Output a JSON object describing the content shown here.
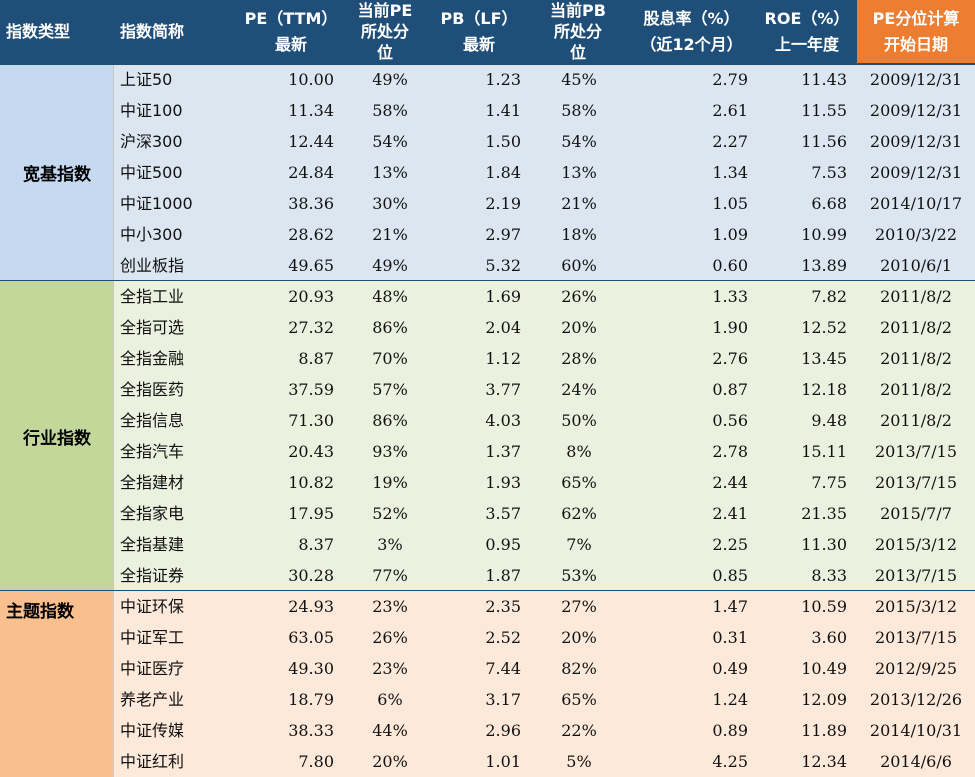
{
  "header": [
    {
      "l1": "指数类型",
      "l2": ""
    },
    {
      "l1": "指数简称",
      "l2": ""
    },
    {
      "l1": "PE（TTM）",
      "l2": "最新"
    },
    {
      "l1": "当前PE",
      "l2": "所处分",
      "l3": "位"
    },
    {
      "l1": "PB（LF）",
      "l2": "最新"
    },
    {
      "l1": "当前PB",
      "l2": "所处分",
      "l3": "位"
    },
    {
      "l1": "股息率（%）",
      "l2": "（近12个月）"
    },
    {
      "l1": "ROE（%）",
      "l2": "上一年度"
    },
    {
      "l1": "PE分位计算",
      "l2": "开始日期"
    }
  ],
  "colors": {
    "header_bg": "#1f4e78",
    "header_accent": "#ed7d31",
    "group1_label_bg": "#c5d9f1",
    "group1_row_bg": "#dce6f1",
    "group2_label_bg": "#c4d79b",
    "group2_row_bg": "#ebf1de",
    "group3_label_bg": "#fabf8f",
    "group3_row_bg": "#fde9d9"
  },
  "groups": [
    {
      "label": "宽基指数",
      "rows": [
        [
          "上证50",
          "10.00",
          "49%",
          "1.23",
          "45%",
          "2.79",
          "11.43",
          "2009/12/31"
        ],
        [
          "中证100",
          "11.34",
          "58%",
          "1.41",
          "58%",
          "2.61",
          "11.55",
          "2009/12/31"
        ],
        [
          "沪深300",
          "12.44",
          "54%",
          "1.50",
          "54%",
          "2.27",
          "11.56",
          "2009/12/31"
        ],
        [
          "中证500",
          "24.84",
          "13%",
          "1.84",
          "13%",
          "1.34",
          "7.53",
          "2009/12/31"
        ],
        [
          "中证1000",
          "38.36",
          "30%",
          "2.19",
          "21%",
          "1.05",
          "6.68",
          "2014/10/17"
        ],
        [
          "中小300",
          "28.62",
          "21%",
          "2.97",
          "18%",
          "1.09",
          "10.99",
          "2010/3/22"
        ],
        [
          "创业板指",
          "49.65",
          "49%",
          "5.32",
          "60%",
          "0.60",
          "13.89",
          "2010/6/1"
        ]
      ]
    },
    {
      "label": "行业指数",
      "rows": [
        [
          "全指工业",
          "20.93",
          "48%",
          "1.69",
          "26%",
          "1.33",
          "7.82",
          "2011/8/2"
        ],
        [
          "全指可选",
          "27.32",
          "86%",
          "2.04",
          "20%",
          "1.90",
          "12.52",
          "2011/8/2"
        ],
        [
          "全指金融",
          "8.87",
          "70%",
          "1.12",
          "28%",
          "2.76",
          "13.45",
          "2011/8/2"
        ],
        [
          "全指医药",
          "37.59",
          "57%",
          "3.77",
          "24%",
          "0.87",
          "12.18",
          "2011/8/2"
        ],
        [
          "全指信息",
          "71.30",
          "86%",
          "4.03",
          "50%",
          "0.56",
          "9.48",
          "2011/8/2"
        ],
        [
          "全指汽车",
          "20.43",
          "93%",
          "1.37",
          "8%",
          "2.78",
          "15.11",
          "2013/7/15"
        ],
        [
          "全指建材",
          "10.82",
          "19%",
          "1.93",
          "65%",
          "2.44",
          "7.75",
          "2013/7/15"
        ],
        [
          "全指家电",
          "17.95",
          "52%",
          "3.57",
          "62%",
          "2.41",
          "21.35",
          "2015/7/7"
        ],
        [
          "全指基建",
          "8.37",
          "3%",
          "0.95",
          "7%",
          "2.25",
          "11.30",
          "2015/3/12"
        ],
        [
          "全指证券",
          "30.28",
          "77%",
          "1.87",
          "53%",
          "0.85",
          "8.33",
          "2013/7/15"
        ]
      ]
    },
    {
      "label": "主题指数",
      "rows": [
        [
          "中证环保",
          "24.93",
          "23%",
          "2.35",
          "27%",
          "1.47",
          "10.59",
          "2015/3/12"
        ],
        [
          "中证军工",
          "63.05",
          "26%",
          "2.52",
          "20%",
          "0.31",
          "3.60",
          "2013/7/15"
        ],
        [
          "中证医疗",
          "49.30",
          "23%",
          "7.44",
          "82%",
          "0.49",
          "10.49",
          "2012/9/25"
        ],
        [
          "养老产业",
          "18.79",
          "6%",
          "3.17",
          "65%",
          "1.24",
          "12.09",
          "2013/12/26"
        ],
        [
          "中证传媒",
          "38.33",
          "44%",
          "2.96",
          "22%",
          "0.89",
          "11.89",
          "2014/10/31"
        ],
        [
          "中证红利",
          "7.80",
          "20%",
          "1.01",
          "5%",
          "4.25",
          "12.34",
          "2014/6/6"
        ]
      ]
    }
  ]
}
